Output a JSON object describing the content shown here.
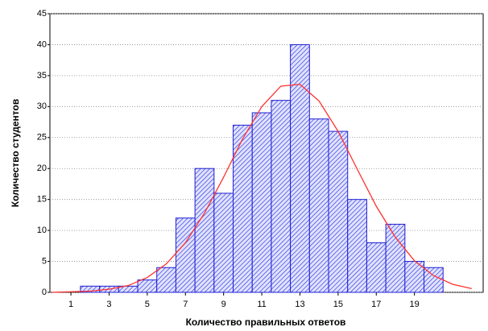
{
  "chart_data": {
    "type": "histogram",
    "xlabel": "Количество правильных ответов",
    "ylabel": "Количество студентов",
    "bins": [
      0.5,
      1.5,
      2.5,
      3.5,
      4.5,
      5.5,
      6.5,
      7.5,
      8.5,
      9.5,
      10.5,
      11.5,
      12.5,
      13.5,
      14.5,
      15.5,
      16.5,
      17.5,
      18.5,
      19.5,
      20.5
    ],
    "counts": [
      0,
      1,
      1,
      1,
      2,
      4,
      12,
      20,
      16,
      27,
      29,
      31,
      40,
      28,
      26,
      15,
      8,
      11,
      5,
      4
    ],
    "color": "#1f1fd0",
    "curve": {
      "color": "#ff3030",
      "x": [
        0,
        1,
        2,
        3,
        4,
        5,
        6,
        7,
        8,
        9,
        10,
        11,
        12,
        13,
        14,
        15,
        16,
        17,
        18,
        19,
        20,
        21,
        22
      ],
      "values": [
        0,
        0.1,
        0.2,
        0.5,
        1.1,
        2.4,
        4.6,
        8.0,
        12.8,
        18.6,
        24.8,
        30.0,
        33.3,
        33.6,
        30.9,
        26.0,
        19.9,
        13.9,
        8.9,
        5.1,
        2.7,
        1.3,
        0.6
      ]
    },
    "xlim": [
      -0.1,
      22.6
    ],
    "xticks": [
      1,
      3,
      5,
      7,
      9,
      11,
      13,
      15,
      17,
      19
    ],
    "ylim": [
      0,
      45
    ],
    "yticks": [
      0,
      5,
      10,
      15,
      20,
      25,
      30,
      35,
      40,
      45
    ],
    "grid": true
  }
}
